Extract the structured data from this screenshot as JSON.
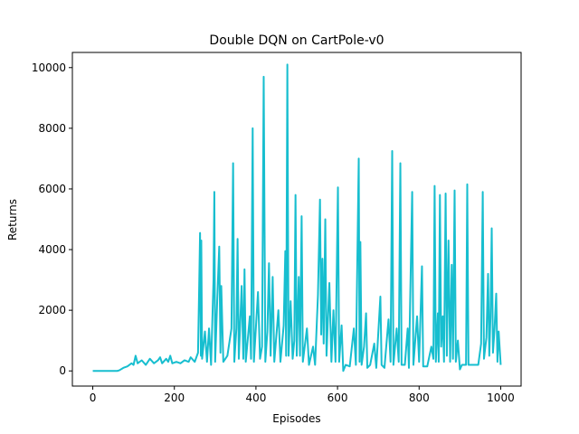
{
  "chart_data": {
    "type": "line",
    "title": "Double DQN on CartPole-v0",
    "x_label": "Episodes",
    "y_label": "Returns",
    "x": [
      0,
      60,
      65,
      75,
      85,
      95,
      100,
      105,
      110,
      120,
      130,
      140,
      150,
      160,
      165,
      170,
      180,
      185,
      190,
      195,
      205,
      215,
      225,
      235,
      240,
      250,
      258,
      261,
      263,
      265,
      266,
      268,
      275,
      280,
      285,
      290,
      296,
      298,
      300,
      305,
      310,
      313,
      315,
      320,
      330,
      340,
      344,
      347,
      352,
      355,
      358,
      365,
      369,
      372,
      375,
      385,
      388,
      392,
      395,
      405,
      410,
      415,
      419,
      423,
      428,
      432,
      436,
      441,
      445,
      455,
      460,
      468,
      472,
      474,
      477,
      480,
      485,
      490,
      494,
      497,
      500,
      505,
      508,
      512,
      515,
      525,
      530,
      540,
      545,
      552,
      557,
      560,
      563,
      566,
      570,
      573,
      580,
      585,
      590,
      595,
      601,
      604,
      610,
      614,
      620,
      630,
      640,
      645,
      652,
      654,
      656,
      659,
      665,
      670,
      673,
      680,
      690,
      695,
      705,
      708,
      715,
      725,
      730,
      734,
      737,
      745,
      750,
      754,
      757,
      765,
      772,
      775,
      783,
      786,
      795,
      800,
      807,
      810,
      820,
      830,
      835,
      838,
      841,
      846,
      848,
      851,
      854,
      858,
      861,
      865,
      868,
      872,
      876,
      880,
      883,
      887,
      890,
      895,
      900,
      905,
      915,
      918,
      921,
      930,
      945,
      952,
      956,
      959,
      965,
      969,
      972,
      975,
      978,
      981,
      985,
      989,
      992,
      995,
      1000
    ],
    "series": [
      {
        "color": "#17becf",
        "values": [
          0,
          0,
          20,
          100,
          150,
          250,
          200,
          500,
          250,
          350,
          200,
          400,
          250,
          350,
          450,
          250,
          400,
          300,
          500,
          250,
          300,
          250,
          350,
          300,
          450,
          300,
          600,
          2900,
          4550,
          500,
          4300,
          400,
          1300,
          300,
          1400,
          200,
          3000,
          5900,
          300,
          2300,
          4100,
          600,
          2800,
          300,
          500,
          1400,
          6850,
          300,
          1400,
          4350,
          400,
          2800,
          400,
          3350,
          300,
          1800,
          400,
          8000,
          300,
          2600,
          400,
          800,
          9700,
          300,
          1300,
          3550,
          500,
          3100,
          300,
          2000,
          300,
          1500,
          3950,
          500,
          10100,
          500,
          2300,
          400,
          1000,
          5800,
          500,
          3100,
          500,
          5100,
          300,
          1400,
          200,
          800,
          200,
          2500,
          5650,
          1200,
          3700,
          900,
          5000,
          500,
          2900,
          300,
          2000,
          300,
          6050,
          300,
          1500,
          0,
          200,
          150,
          1400,
          200,
          7000,
          300,
          4250,
          200,
          800,
          1900,
          100,
          200,
          900,
          100,
          2450,
          200,
          100,
          1700,
          300,
          7250,
          200,
          1400,
          300,
          6850,
          200,
          200,
          1400,
          100,
          5900,
          200,
          1800,
          300,
          3450,
          150,
          150,
          800,
          400,
          6100,
          300,
          1900,
          300,
          5800,
          800,
          1800,
          300,
          5850,
          500,
          4300,
          300,
          3500,
          400,
          5950,
          300,
          1000,
          50,
          200,
          200,
          6150,
          200,
          200,
          200,
          900,
          5900,
          400,
          1100,
          3200,
          500,
          1800,
          4700,
          600,
          1400,
          2550,
          300,
          1300,
          200
        ]
      }
    ],
    "xlim": [
      -50,
      1050
    ],
    "ylim": [
      -500,
      10500
    ],
    "xticks": [
      0,
      200,
      400,
      600,
      800,
      1000
    ],
    "yticks": [
      0,
      2000,
      4000,
      6000,
      8000,
      10000
    ]
  }
}
